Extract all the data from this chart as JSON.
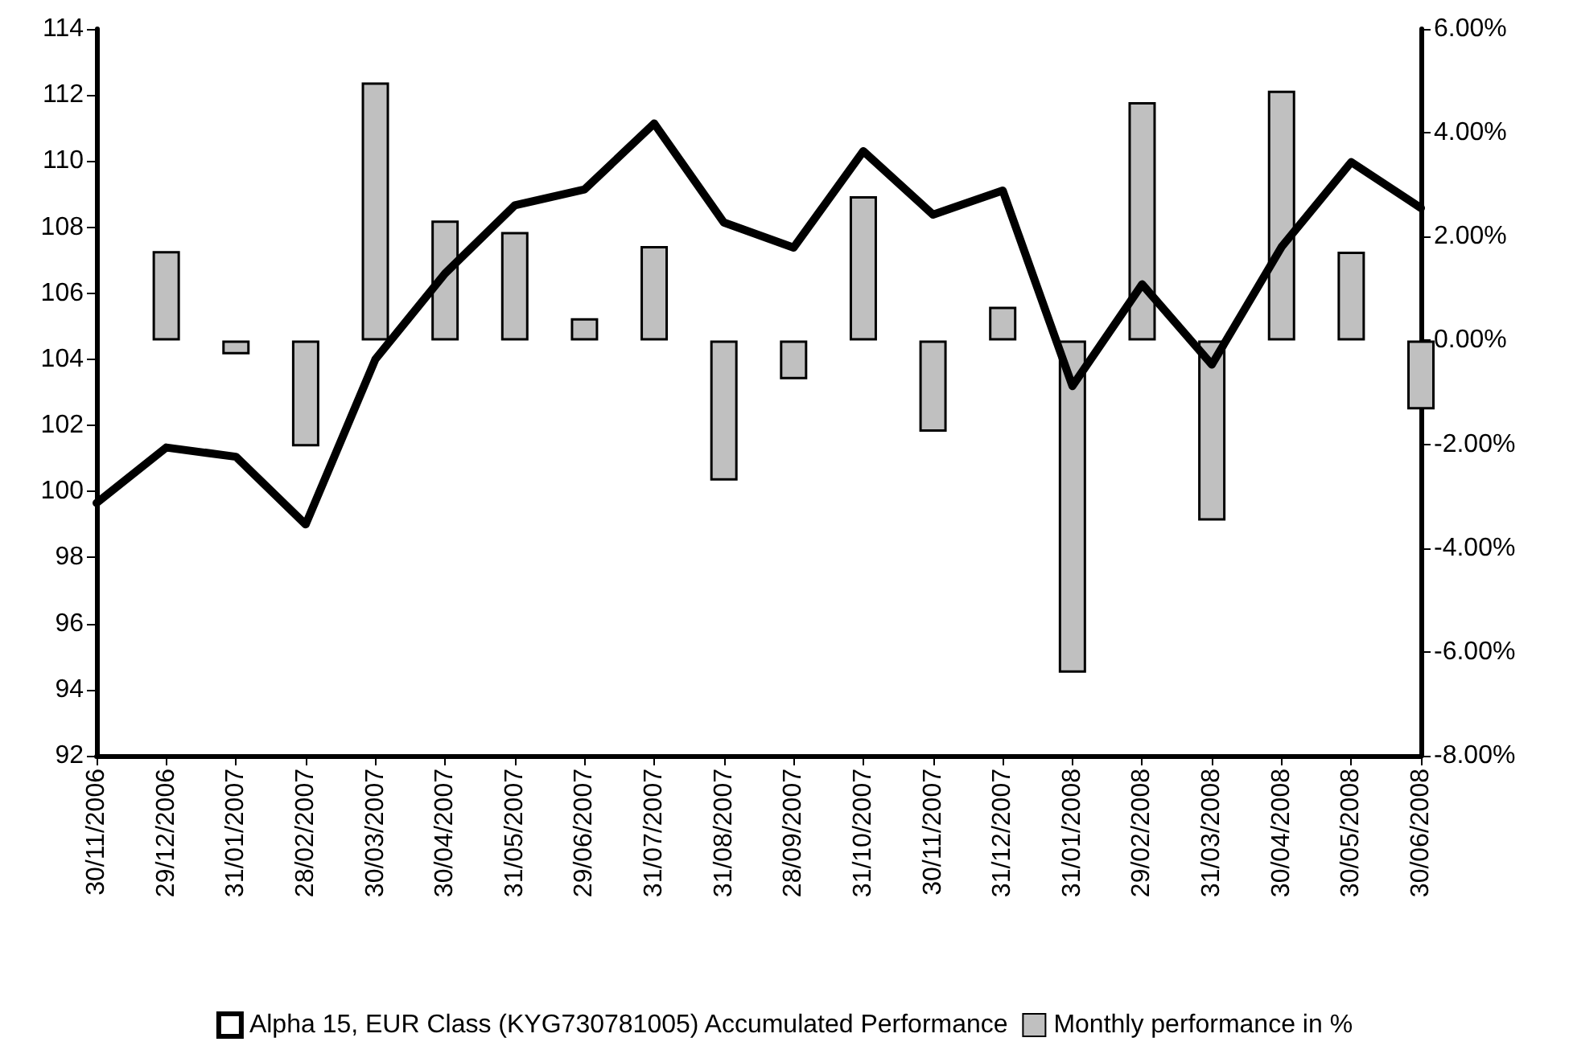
{
  "chart_data": {
    "type": "line",
    "categories": [
      "30/11/2006",
      "29/12/2006",
      "31/01/2007",
      "28/02/2007",
      "30/03/2007",
      "30/04/2007",
      "31/05/2007",
      "29/06/2007",
      "31/07/2007",
      "31/08/2007",
      "28/09/2007",
      "31/10/2007",
      "30/11/2007",
      "31/12/2007",
      "31/01/2008",
      "29/02/2008",
      "31/03/2008",
      "30/04/2008",
      "30/05/2008",
      "30/06/2008"
    ],
    "series": [
      {
        "name": "Alpha 15, EUR Class (KYG730781005) Accumulated Performance",
        "color": "#000000",
        "values": [
          99.65,
          101.33,
          101.05,
          99.0,
          104.0,
          106.6,
          108.66,
          109.14,
          111.14,
          108.14,
          107.38,
          110.3,
          108.38,
          109.11,
          103.19,
          106.27,
          103.84,
          107.4,
          109.97,
          108.58
        ]
      },
      {
        "name": "Monthly performance in %",
        "type": "bar",
        "axis": "y2",
        "color": "#c0c0c0",
        "values": [
          null,
          1.72,
          -0.27,
          -2.04,
          4.97,
          2.31,
          2.09,
          0.43,
          1.82,
          -2.7,
          -0.75,
          2.78,
          -1.76,
          0.65,
          -6.4,
          4.59,
          -3.47,
          4.81,
          1.71,
          -1.33
        ]
      }
    ],
    "ylim": [
      92,
      114
    ],
    "yticks": [
      92,
      94,
      96,
      98,
      100,
      102,
      104,
      106,
      108,
      110,
      112,
      114
    ],
    "y2lim": [
      -8,
      6
    ],
    "y2ticks": [
      {
        "value": -8,
        "label": "-8.00%"
      },
      {
        "value": -6,
        "label": "-6.00%"
      },
      {
        "value": -4,
        "label": "-4.00%"
      },
      {
        "value": -2,
        "label": "-2.00%"
      },
      {
        "value": 0,
        "label": "0.00%"
      },
      {
        "value": 2,
        "label": "2.00%"
      },
      {
        "value": 4,
        "label": "4.00%"
      },
      {
        "value": 6,
        "label": "6.00%"
      }
    ],
    "grid": false,
    "legend": "bottom",
    "marker": "none",
    "line_style": "solid"
  }
}
